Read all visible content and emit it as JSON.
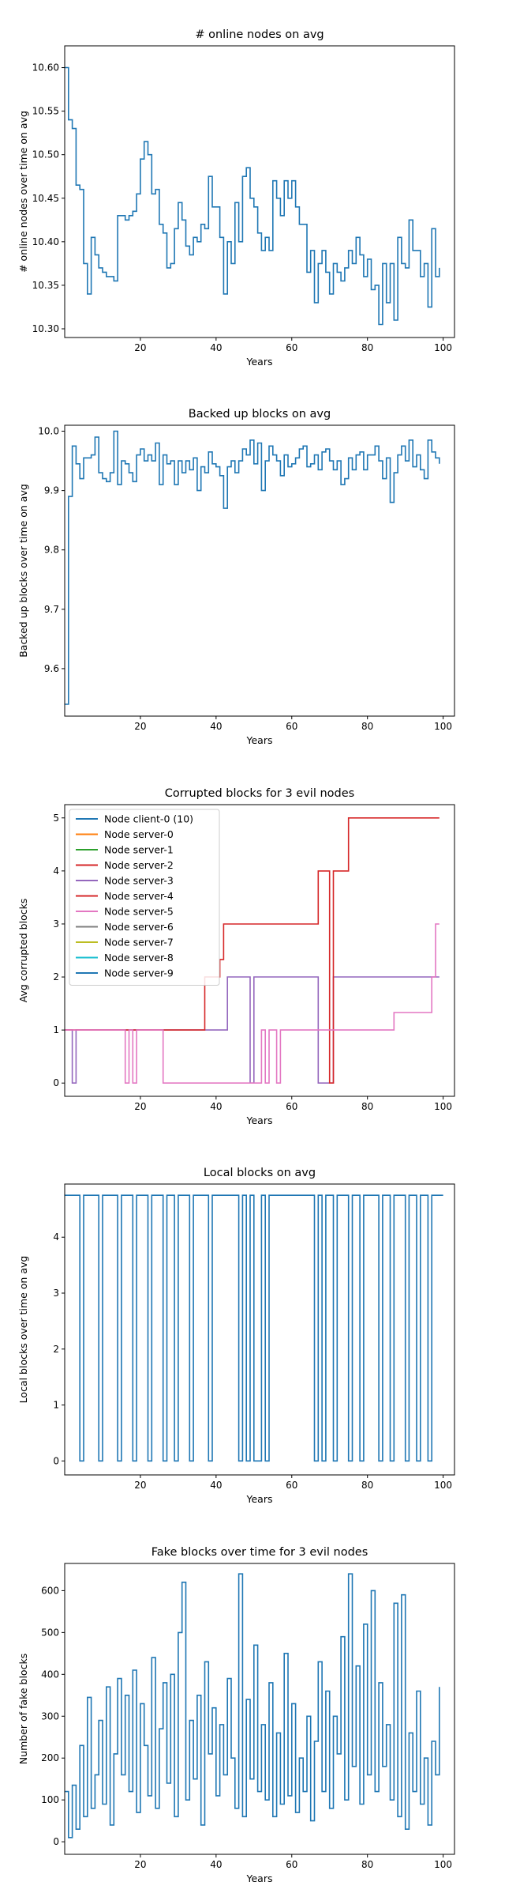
{
  "colors": {
    "blue": "#1f77b4",
    "orange": "#ff7f0e",
    "green": "#2ca02c",
    "red": "#d62728",
    "purple": "#9467bd",
    "brown": "#8c564b",
    "pink": "#e377c2",
    "gray": "#7f7f7f",
    "olive": "#bcbd22",
    "cyan": "#17becf"
  },
  "chart_data": [
    {
      "type": "line",
      "step": true,
      "title": "# online nodes on avg",
      "xlabel": "Years",
      "ylabel": "# online nodes over time on avg",
      "xlim": [
        0,
        103
      ],
      "ylim": [
        10.29,
        10.625
      ],
      "xticks": [
        20,
        40,
        60,
        80,
        100
      ],
      "yticks": [
        10.3,
        10.35,
        10.4,
        10.45,
        10.5,
        10.55,
        10.6
      ],
      "ytick_labels": [
        "10.30",
        "10.35",
        "10.40",
        "10.45",
        "10.50",
        "10.55",
        "10.60"
      ],
      "series": [
        {
          "x": [
            0,
            1,
            2,
            3,
            4,
            5,
            6,
            7,
            8,
            9,
            10,
            11,
            12,
            13,
            14,
            15,
            16,
            17,
            18,
            19,
            20,
            21,
            22,
            23,
            24,
            25,
            26,
            27,
            28,
            29,
            30,
            31,
            32,
            33,
            34,
            35,
            36,
            37,
            38,
            39,
            40,
            41,
            42,
            43,
            44,
            45,
            46,
            47,
            48,
            49,
            50,
            51,
            52,
            53,
            54,
            55,
            56,
            57,
            58,
            59,
            60,
            61,
            62,
            63,
            64,
            65,
            66,
            67,
            68,
            69,
            70,
            71,
            72,
            73,
            74,
            75,
            76,
            77,
            78,
            79,
            80,
            81,
            82,
            83,
            84,
            85,
            86,
            87,
            88,
            89,
            90,
            91,
            92,
            93,
            94,
            95,
            96,
            97,
            98,
            99
          ],
          "y": [
            10.6,
            10.54,
            10.53,
            10.465,
            10.46,
            10.375,
            10.34,
            10.405,
            10.385,
            10.37,
            10.365,
            10.36,
            10.36,
            10.355,
            10.43,
            10.43,
            10.425,
            10.43,
            10.435,
            10.455,
            10.495,
            10.515,
            10.5,
            10.455,
            10.46,
            10.42,
            10.41,
            10.37,
            10.375,
            10.415,
            10.445,
            10.425,
            10.395,
            10.385,
            10.405,
            10.4,
            10.42,
            10.415,
            10.475,
            10.44,
            10.44,
            10.405,
            10.34,
            10.4,
            10.375,
            10.445,
            10.4,
            10.475,
            10.485,
            10.45,
            10.44,
            10.41,
            10.39,
            10.405,
            10.39,
            10.47,
            10.45,
            10.43,
            10.47,
            10.45,
            10.47,
            10.44,
            10.42,
            10.42,
            10.365,
            10.39,
            10.33,
            10.375,
            10.39,
            10.365,
            10.34,
            10.375,
            10.365,
            10.355,
            10.37,
            10.39,
            10.375,
            10.405,
            10.385,
            10.36,
            10.38,
            10.345,
            10.35,
            10.305,
            10.375,
            10.33,
            10.375,
            10.31,
            10.405,
            10.375,
            10.37,
            10.425,
            10.39,
            10.39,
            10.36,
            10.375,
            10.325,
            10.415,
            10.36,
            10.37
          ]
        }
      ]
    },
    {
      "type": "line",
      "step": true,
      "title": "Backed up blocks on avg",
      "xlabel": "Years",
      "ylabel": "Backed up blocks over time on avg",
      "xlim": [
        0,
        103
      ],
      "ylim": [
        9.52,
        10.01
      ],
      "xticks": [
        20,
        40,
        60,
        80,
        100
      ],
      "yticks": [
        9.6,
        9.7,
        9.8,
        9.9,
        10.0
      ],
      "ytick_labels": [
        "9.6",
        "9.7",
        "9.8",
        "9.9",
        "10.0"
      ],
      "series": [
        {
          "x": [
            0,
            1,
            2,
            3,
            4,
            5,
            6,
            7,
            8,
            9,
            10,
            11,
            12,
            13,
            14,
            15,
            16,
            17,
            18,
            19,
            20,
            21,
            22,
            23,
            24,
            25,
            26,
            27,
            28,
            29,
            30,
            31,
            32,
            33,
            34,
            35,
            36,
            37,
            38,
            39,
            40,
            41,
            42,
            43,
            44,
            45,
            46,
            47,
            48,
            49,
            50,
            51,
            52,
            53,
            54,
            55,
            56,
            57,
            58,
            59,
            60,
            61,
            62,
            63,
            64,
            65,
            66,
            67,
            68,
            69,
            70,
            71,
            72,
            73,
            74,
            75,
            76,
            77,
            78,
            79,
            80,
            81,
            82,
            83,
            84,
            85,
            86,
            87,
            88,
            89,
            90,
            91,
            92,
            93,
            94,
            95,
            96,
            97,
            98,
            99
          ],
          "y": [
            9.54,
            9.89,
            9.975,
            9.945,
            9.92,
            9.955,
            9.955,
            9.96,
            9.99,
            9.93,
            9.92,
            9.915,
            9.93,
            10.0,
            9.91,
            9.95,
            9.945,
            9.93,
            9.915,
            9.96,
            9.97,
            9.95,
            9.96,
            9.95,
            9.98,
            9.91,
            9.96,
            9.945,
            9.95,
            9.91,
            9.95,
            9.93,
            9.95,
            9.935,
            9.955,
            9.9,
            9.94,
            9.93,
            9.965,
            9.945,
            9.94,
            9.925,
            9.87,
            9.94,
            9.95,
            9.93,
            9.95,
            9.97,
            9.96,
            9.985,
            9.945,
            9.98,
            9.9,
            9.95,
            9.975,
            9.96,
            9.95,
            9.925,
            9.96,
            9.94,
            9.945,
            9.955,
            9.97,
            9.975,
            9.94,
            9.945,
            9.96,
            9.935,
            9.965,
            9.97,
            9.95,
            9.935,
            9.95,
            9.91,
            9.92,
            9.955,
            9.935,
            9.96,
            9.965,
            9.935,
            9.96,
            9.96,
            9.975,
            9.95,
            9.92,
            9.955,
            9.88,
            9.93,
            9.96,
            9.975,
            9.95,
            9.985,
            9.94,
            9.96,
            9.935,
            9.92,
            9.985,
            9.965,
            9.955,
            9.945
          ]
        }
      ]
    },
    {
      "type": "line",
      "step": true,
      "title": "Corrupted blocks for 3 evil nodes",
      "xlabel": "Years",
      "ylabel": "Avg corrupted blocks",
      "xlim": [
        0,
        103
      ],
      "ylim": [
        -0.25,
        5.25
      ],
      "xticks": [
        20,
        40,
        60,
        80,
        100
      ],
      "yticks": [
        0,
        1,
        2,
        3,
        4,
        5
      ],
      "ytick_labels": [
        "0",
        "1",
        "2",
        "3",
        "4",
        "5"
      ],
      "legend": "top-left",
      "series": [
        {
          "name": "Node client-0 (10)",
          "color": "#1f77b4",
          "x": [],
          "y": []
        },
        {
          "name": "Node server-0",
          "color": "#ff7f0e",
          "x": [],
          "y": []
        },
        {
          "name": "Node server-1",
          "color": "#2ca02c",
          "x": [],
          "y": []
        },
        {
          "name": "Node server-2",
          "color": "#d62728",
          "x": [],
          "y": []
        },
        {
          "name": "Node server-3",
          "color": "#9467bd",
          "x": [
            0,
            2,
            3,
            4,
            42,
            43,
            44,
            48,
            49,
            50,
            66,
            67,
            71,
            72,
            98,
            99
          ],
          "y": [
            1,
            0,
            1,
            1,
            1,
            2,
            2,
            2,
            0,
            2,
            2,
            0,
            2,
            2,
            2,
            2
          ]
        },
        {
          "name": "Node server-4",
          "color": "#d62728",
          "x": [
            0,
            36,
            37,
            40,
            41,
            42,
            43,
            66,
            67,
            68,
            69,
            70,
            71,
            72,
            74,
            75,
            76,
            98,
            99
          ],
          "y": [
            1,
            1,
            2,
            2,
            2.33,
            3,
            3,
            3,
            4,
            4,
            4,
            0,
            4,
            4,
            4,
            5,
            5,
            5,
            5
          ]
        },
        {
          "name": "Node server-5",
          "color": "#e377c2",
          "x": [
            0,
            15,
            16,
            17,
            18,
            19,
            25,
            26,
            52,
            53,
            54,
            55,
            56,
            57,
            86,
            87,
            97,
            98,
            99
          ],
          "y": [
            1,
            1,
            0,
            1,
            0,
            1,
            1,
            0,
            1,
            0,
            1,
            1,
            0,
            1,
            1,
            1.33,
            2,
            3,
            3
          ]
        },
        {
          "name": "Node server-6",
          "color": "#7f7f7f",
          "x": [],
          "y": []
        },
        {
          "name": "Node server-7",
          "color": "#bcbd22",
          "x": [],
          "y": []
        },
        {
          "name": "Node server-8",
          "color": "#17becf",
          "x": [],
          "y": []
        },
        {
          "name": "Node server-9",
          "color": "#1f77b4",
          "x": [],
          "y": []
        }
      ]
    },
    {
      "type": "line",
      "step": true,
      "title": "Local blocks on avg",
      "xlabel": "Years",
      "ylabel": "Local blocks over time on avg",
      "xlim": [
        0,
        103
      ],
      "ylim": [
        -0.25,
        4.95
      ],
      "xticks": [
        20,
        40,
        60,
        80,
        100
      ],
      "yticks": [
        0,
        1,
        2,
        3,
        4
      ],
      "ytick_labels": [
        "0",
        "1",
        "2",
        "3",
        "4"
      ],
      "series": [
        {
          "x": [
            0,
            4,
            5,
            9,
            10,
            14,
            15,
            18,
            19,
            20,
            22,
            23,
            26,
            27,
            29,
            30,
            33,
            34,
            38,
            39,
            46,
            47,
            48,
            49,
            50,
            52,
            53,
            54,
            66,
            67,
            68,
            69,
            71,
            72,
            75,
            76,
            78,
            79,
            83,
            84,
            86,
            87,
            90,
            91,
            93,
            94,
            96,
            97,
            100
          ],
          "y": [
            4.75,
            0,
            4.75,
            0,
            4.75,
            0,
            4.75,
            0,
            4.75,
            4.75,
            0,
            4.75,
            0,
            4.75,
            0,
            4.75,
            0,
            4.75,
            0,
            4.75,
            0,
            4.75,
            0,
            4.75,
            0,
            4.75,
            0,
            4.75,
            0,
            4.75,
            0,
            4.75,
            0,
            4.75,
            0,
            4.75,
            0,
            4.75,
            0,
            4.75,
            0,
            4.75,
            0,
            4.75,
            0,
            4.75,
            0,
            4.75,
            4.75
          ]
        }
      ]
    },
    {
      "type": "line",
      "step": true,
      "title": "Fake blocks over time for 3 evil nodes",
      "xlabel": "Years",
      "ylabel": "Number of fake blocks",
      "xlim": [
        0,
        103
      ],
      "ylim": [
        -30,
        665
      ],
      "xticks": [
        20,
        40,
        60,
        80,
        100
      ],
      "yticks": [
        0,
        100,
        200,
        300,
        400,
        500,
        600
      ],
      "ytick_labels": [
        "0",
        "100",
        "200",
        "300",
        "400",
        "500",
        "600"
      ],
      "series": [
        {
          "x": [
            0,
            1,
            2,
            3,
            4,
            5,
            6,
            7,
            8,
            9,
            10,
            11,
            12,
            13,
            14,
            15,
            16,
            17,
            18,
            19,
            20,
            21,
            22,
            23,
            24,
            25,
            26,
            27,
            28,
            29,
            30,
            31,
            32,
            33,
            34,
            35,
            36,
            37,
            38,
            39,
            40,
            41,
            42,
            43,
            44,
            45,
            46,
            47,
            48,
            49,
            50,
            51,
            52,
            53,
            54,
            55,
            56,
            57,
            58,
            59,
            60,
            61,
            62,
            63,
            64,
            65,
            66,
            67,
            68,
            69,
            70,
            71,
            72,
            73,
            74,
            75,
            76,
            77,
            78,
            79,
            80,
            81,
            82,
            83,
            84,
            85,
            86,
            87,
            88,
            89,
            90,
            91,
            92,
            93,
            94,
            95,
            96,
            97,
            98,
            99
          ],
          "y": [
            120,
            10,
            135,
            30,
            230,
            60,
            345,
            80,
            160,
            290,
            90,
            370,
            40,
            210,
            390,
            160,
            350,
            120,
            410,
            70,
            330,
            230,
            110,
            440,
            80,
            270,
            380,
            140,
            400,
            60,
            500,
            620,
            100,
            290,
            150,
            350,
            40,
            430,
            210,
            320,
            110,
            280,
            160,
            390,
            200,
            80,
            640,
            60,
            340,
            150,
            470,
            120,
            280,
            100,
            380,
            60,
            260,
            90,
            450,
            110,
            330,
            70,
            200,
            120,
            300,
            50,
            240,
            430,
            120,
            360,
            80,
            300,
            210,
            490,
            100,
            640,
            180,
            420,
            90,
            520,
            160,
            600,
            120,
            380,
            180,
            280,
            100,
            570,
            60,
            590,
            30,
            260,
            120,
            360,
            90,
            200,
            40,
            240,
            160,
            370
          ]
        }
      ]
    }
  ]
}
